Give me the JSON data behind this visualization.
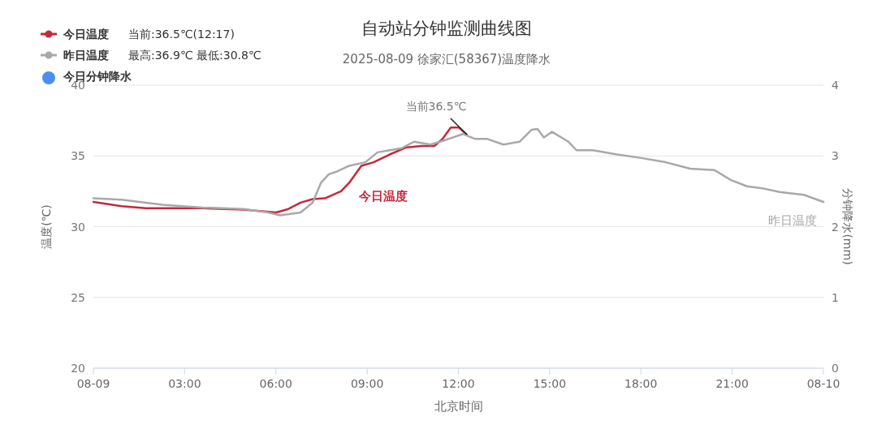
{
  "chart_data": {
    "type": "line",
    "title": "自动站分钟监测曲线图",
    "subtitle": "2025-08-09 徐家汇(58367)温度降水",
    "xlabel": "北京时间",
    "ylabel": "温度(℃)",
    "y2label": "分钟降水(mm)",
    "xlim": [
      0,
      24
    ],
    "xticks": [
      {
        "value": 0,
        "label": "08-09"
      },
      {
        "value": 3,
        "label": "03:00"
      },
      {
        "value": 6,
        "label": "06:00"
      },
      {
        "value": 9,
        "label": "09:00"
      },
      {
        "value": 12,
        "label": "12:00"
      },
      {
        "value": 15,
        "label": "15:00"
      },
      {
        "value": 18,
        "label": "18:00"
      },
      {
        "value": 21,
        "label": "21:00"
      },
      {
        "value": 24,
        "label": "08-10"
      }
    ],
    "ylim": [
      20,
      40
    ],
    "yticks": [
      20,
      25,
      30,
      35,
      40
    ],
    "y2lim": [
      0,
      4
    ],
    "y2ticks": [
      0,
      1,
      2,
      3,
      4
    ],
    "grid": "y",
    "legend": "top left",
    "annotations": [
      "当前:36.5℃(12:17)",
      "最高:36.9℃ 最低:30.8℃",
      {
        "text": "当前36.5℃",
        "x": 12.28,
        "y": 36.5
      }
    ],
    "series": [
      {
        "name": "今日温度",
        "color": "#c4283c",
        "x": [
          0,
          0.93,
          1.73,
          3.6,
          4.94,
          6.01,
          6.41,
          6.81,
          7.21,
          7.61,
          8.14,
          8.41,
          8.81,
          9.21,
          9.74,
          10.28,
          10.81,
          11.21,
          11.48,
          11.75,
          12.02,
          12.28
        ],
        "values": [
          31.75,
          31.45,
          31.3,
          31.3,
          31.2,
          31.0,
          31.25,
          31.7,
          31.95,
          32.0,
          32.5,
          33.1,
          34.3,
          34.55,
          35.1,
          35.6,
          35.7,
          35.7,
          36.2,
          37.0,
          37.0,
          36.5
        ]
      },
      {
        "name": "昨日温度",
        "color": "#a8a8a8",
        "x": [
          0,
          0.93,
          2.27,
          3.6,
          4.94,
          5.74,
          6.14,
          6.81,
          7.21,
          7.48,
          7.74,
          8.01,
          8.41,
          8.94,
          9.34,
          9.74,
          10.14,
          10.54,
          11.08,
          11.61,
          12.15,
          12.55,
          12.95,
          13.48,
          14.01,
          14.41,
          14.6,
          14.81,
          15.08,
          15.62,
          15.88,
          16.42,
          17.22,
          18.02,
          18.82,
          19.62,
          20.42,
          20.95,
          21.49,
          22.02,
          22.56,
          23.36,
          24
        ],
        "values": [
          32.0,
          31.9,
          31.55,
          31.35,
          31.25,
          31.0,
          30.8,
          31.0,
          31.7,
          33.1,
          33.7,
          33.9,
          34.3,
          34.55,
          35.25,
          35.4,
          35.55,
          36.0,
          35.8,
          36.15,
          36.55,
          36.2,
          36.2,
          35.8,
          36.0,
          36.85,
          36.9,
          36.3,
          36.7,
          36.0,
          35.4,
          35.4,
          35.1,
          34.85,
          34.55,
          34.1,
          34.0,
          33.3,
          32.85,
          32.7,
          32.45,
          32.25,
          31.75
        ]
      },
      {
        "name": "今日分钟降水",
        "color": "#4a8ff0",
        "type": "scatter"
      }
    ]
  }
}
